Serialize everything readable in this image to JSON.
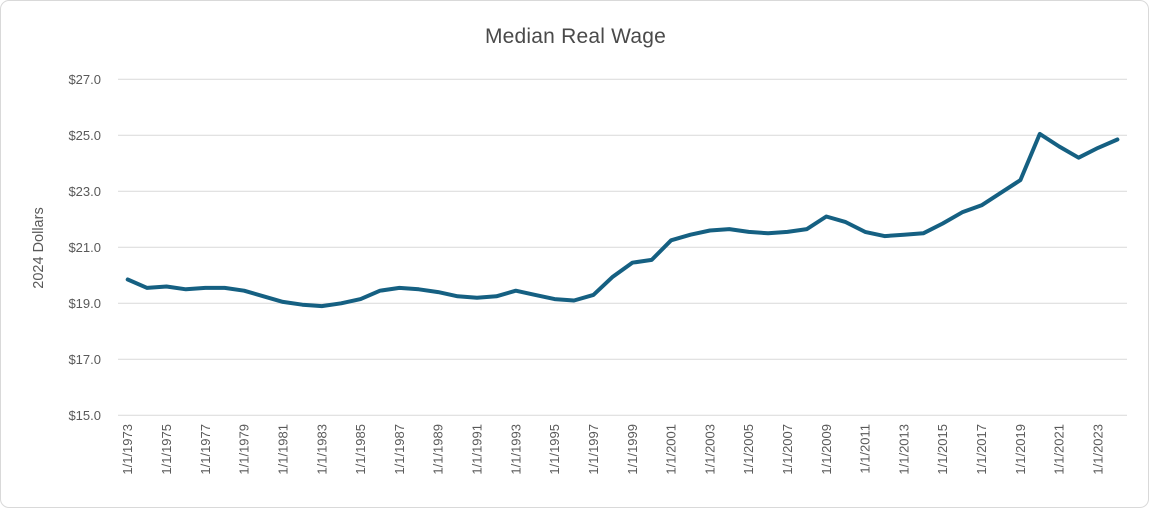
{
  "chart_data": {
    "type": "line",
    "title": "Median Real Wage",
    "xlabel": "",
    "ylabel": "2024 Dollars",
    "ylim": [
      15.0,
      27.0
    ],
    "ytick_step": 2.0,
    "ytick_prefix": "$",
    "ytick_labels": [
      "$15.0",
      "$17.0",
      "$19.0",
      "$21.0",
      "$23.0",
      "$25.0",
      "$27.0"
    ],
    "x_tick_labels": [
      "1/1/1973",
      "1/1/1975",
      "1/1/1977",
      "1/1/1979",
      "1/1/1981",
      "1/1/1983",
      "1/1/1985",
      "1/1/1987",
      "1/1/1989",
      "1/1/1991",
      "1/1/1993",
      "1/1/1995",
      "1/1/1997",
      "1/1/1999",
      "1/1/2001",
      "1/1/2003",
      "1/1/2005",
      "1/1/2007",
      "1/1/2009",
      "1/1/2011",
      "1/1/2013",
      "1/1/2015",
      "1/1/2017",
      "1/1/2019",
      "1/1/2021",
      "1/1/2023"
    ],
    "grid": true,
    "legend": false,
    "series": [
      {
        "name": "Median Real Wage",
        "years": [
          1973,
          1974,
          1975,
          1976,
          1977,
          1978,
          1979,
          1980,
          1981,
          1982,
          1983,
          1984,
          1985,
          1986,
          1987,
          1988,
          1989,
          1990,
          1991,
          1992,
          1993,
          1994,
          1995,
          1996,
          1997,
          1998,
          1999,
          2000,
          2001,
          2002,
          2003,
          2004,
          2005,
          2006,
          2007,
          2008,
          2009,
          2010,
          2011,
          2012,
          2013,
          2014,
          2015,
          2016,
          2017,
          2018,
          2019,
          2020,
          2021,
          2022,
          2023,
          2024
        ],
        "values": [
          19.85,
          19.55,
          19.6,
          19.5,
          19.55,
          19.55,
          19.45,
          19.25,
          19.05,
          18.95,
          18.9,
          19.0,
          19.15,
          19.45,
          19.55,
          19.5,
          19.4,
          19.25,
          19.2,
          19.25,
          19.45,
          19.3,
          19.15,
          19.1,
          19.3,
          19.95,
          20.45,
          20.55,
          21.25,
          21.45,
          21.6,
          21.65,
          21.55,
          21.5,
          21.55,
          21.65,
          22.1,
          21.9,
          21.55,
          21.4,
          21.45,
          21.5,
          21.85,
          22.25,
          22.5,
          22.95,
          23.4,
          25.05,
          24.6,
          24.2,
          24.55,
          24.85
        ]
      }
    ],
    "colors": {
      "line": "#156082",
      "gridline": "#D9D9D9",
      "tick_text": "#595959",
      "title_text": "#4a4a4a",
      "border": "#D9D9D9",
      "background": "#ffffff"
    }
  }
}
